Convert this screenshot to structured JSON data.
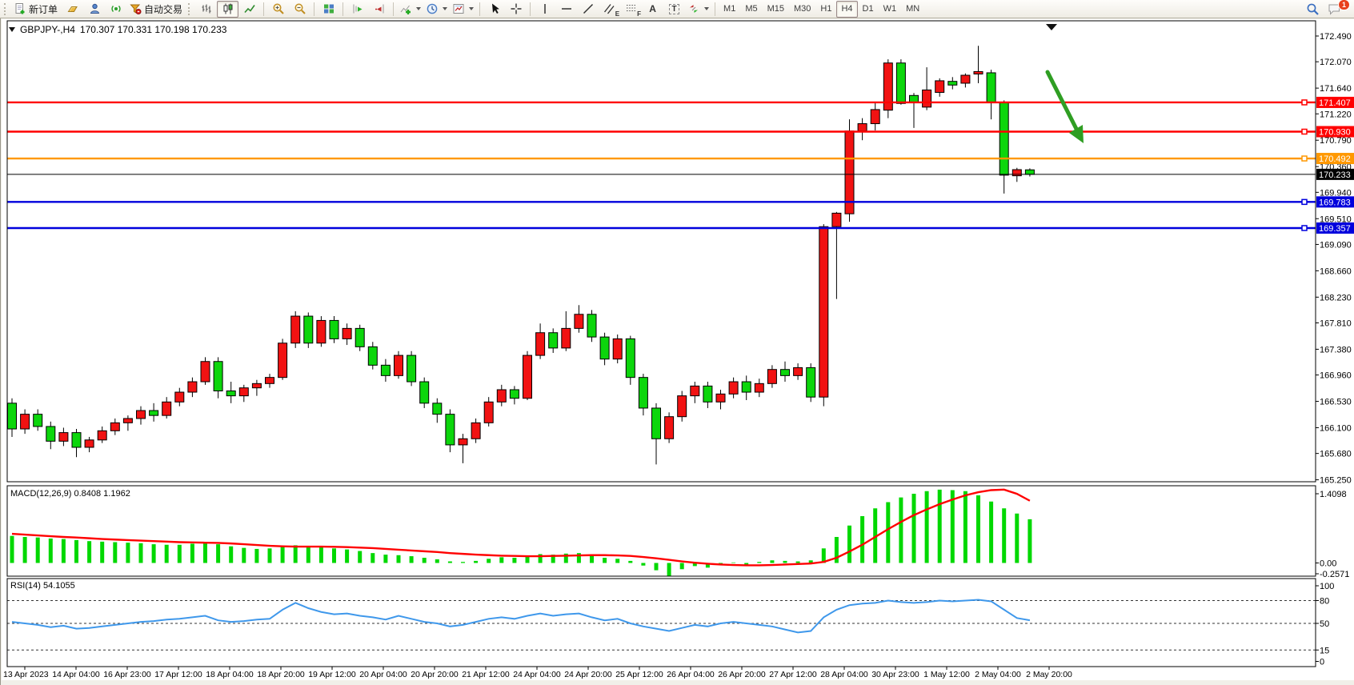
{
  "toolbar": {
    "new_order_label": "新订单",
    "autotrade_label": "自动交易",
    "glyph_a": "A",
    "glyph_t": "T",
    "glyph_e": "E",
    "glyph_f": "F",
    "timeframes": [
      "M1",
      "M5",
      "M15",
      "M30",
      "H1",
      "H4",
      "D1",
      "W1",
      "MN"
    ],
    "active_timeframe": "H4",
    "notification_count": "1"
  },
  "chart": {
    "title": {
      "symbol_period": "GBPJPY-,H4",
      "ohlc_text": "170.307 170.331 170.198 170.233"
    },
    "macd_label": "MACD(12,26,9) 0.8408 1.1962",
    "rsi_label": "RSI(14) 54.1055",
    "price_ticks": [
      "172.490",
      "172.070",
      "171.640",
      "171.220",
      "170.790",
      "170.360",
      "169.940",
      "169.510",
      "169.090",
      "168.660",
      "168.230",
      "167.810",
      "167.380",
      "166.960",
      "166.530",
      "166.100",
      "165.680",
      "165.250"
    ],
    "macd_ticks": [
      {
        "label": "1.4098",
        "value": 1.4098
      },
      {
        "label": "0.00",
        "value": 0
      },
      {
        "label": "-0.2571",
        "value": -0.2571
      }
    ],
    "rsi_ticks": [
      {
        "label": "100",
        "value": 100,
        "dashed": false
      },
      {
        "label": "80",
        "value": 80,
        "dashed": true
      },
      {
        "label": "50",
        "value": 50,
        "dashed": true
      },
      {
        "label": "15",
        "value": 15,
        "dashed": true
      },
      {
        "label": "0",
        "value": 0,
        "dashed": false
      }
    ],
    "hlines": [
      {
        "price": 171.407,
        "label": "171.407",
        "color": "#ff0000"
      },
      {
        "price": 170.93,
        "label": "170.930",
        "color": "#ff0000"
      },
      {
        "price": 170.492,
        "label": "170.492",
        "color": "#ff9800"
      },
      {
        "price": 169.783,
        "label": "169.783",
        "color": "#0000dd"
      },
      {
        "price": 169.357,
        "label": "169.357",
        "color": "#0000dd"
      }
    ],
    "current_price": {
      "value": 170.233,
      "label": "170.233"
    },
    "date_labels": [
      "13 Apr 2023",
      "14 Apr 04:00",
      "16 Apr 23:00",
      "17 Apr 12:00",
      "18 Apr 04:00",
      "18 Apr 20:00",
      "19 Apr 12:00",
      "20 Apr 04:00",
      "20 Apr 20:00",
      "21 Apr 12:00",
      "24 Apr 04:00",
      "24 Apr 20:00",
      "25 Apr 12:00",
      "26 Apr 04:00",
      "26 Apr 20:00",
      "27 Apr 12:00",
      "28 Apr 04:00",
      "30 Apr 23:00",
      "1 May 12:00",
      "2 May 04:00",
      "2 May 20:00"
    ]
  },
  "chart_data": {
    "type": "candlestick",
    "symbol": "GBPJPY",
    "timeframe": "H4",
    "ylim": [
      165.25,
      172.49
    ],
    "ohlc": [
      [
        166.5,
        166.58,
        165.95,
        166.08
      ],
      [
        166.08,
        166.4,
        166.0,
        166.32
      ],
      [
        166.32,
        166.4,
        166.05,
        166.12
      ],
      [
        166.12,
        166.2,
        165.75,
        165.88
      ],
      [
        165.88,
        166.1,
        165.8,
        166.02
      ],
      [
        166.02,
        166.08,
        165.62,
        165.78
      ],
      [
        165.78,
        165.95,
        165.7,
        165.9
      ],
      [
        165.9,
        166.12,
        165.85,
        166.05
      ],
      [
        166.05,
        166.25,
        165.98,
        166.18
      ],
      [
        166.18,
        166.3,
        166.05,
        166.25
      ],
      [
        166.25,
        166.45,
        166.15,
        166.38
      ],
      [
        166.38,
        166.5,
        166.2,
        166.3
      ],
      [
        166.3,
        166.6,
        166.25,
        166.52
      ],
      [
        166.52,
        166.75,
        166.45,
        166.68
      ],
      [
        166.68,
        166.92,
        166.6,
        166.85
      ],
      [
        166.85,
        167.25,
        166.8,
        167.18
      ],
      [
        167.18,
        167.25,
        166.58,
        166.7
      ],
      [
        166.7,
        166.85,
        166.5,
        166.62
      ],
      [
        166.62,
        166.8,
        166.52,
        166.75
      ],
      [
        166.75,
        166.88,
        166.62,
        166.82
      ],
      [
        166.82,
        166.98,
        166.75,
        166.92
      ],
      [
        166.92,
        167.55,
        166.88,
        167.48
      ],
      [
        167.48,
        168.0,
        167.4,
        167.92
      ],
      [
        167.92,
        167.98,
        167.4,
        167.48
      ],
      [
        167.48,
        167.92,
        167.42,
        167.85
      ],
      [
        167.85,
        167.92,
        167.48,
        167.55
      ],
      [
        167.55,
        167.8,
        167.45,
        167.72
      ],
      [
        167.72,
        167.78,
        167.35,
        167.42
      ],
      [
        167.42,
        167.5,
        167.05,
        167.12
      ],
      [
        167.12,
        167.22,
        166.85,
        166.95
      ],
      [
        166.95,
        167.35,
        166.9,
        167.28
      ],
      [
        167.28,
        167.35,
        166.78,
        166.85
      ],
      [
        166.85,
        166.92,
        166.42,
        166.5
      ],
      [
        166.5,
        166.58,
        166.18,
        166.32
      ],
      [
        166.32,
        166.4,
        165.7,
        165.82
      ],
      [
        165.82,
        166.0,
        165.52,
        165.92
      ],
      [
        165.92,
        166.25,
        165.85,
        166.18
      ],
      [
        166.18,
        166.6,
        166.12,
        166.52
      ],
      [
        166.52,
        166.8,
        166.45,
        166.72
      ],
      [
        166.72,
        166.78,
        166.48,
        166.58
      ],
      [
        166.58,
        167.35,
        166.55,
        167.28
      ],
      [
        167.28,
        167.8,
        167.22,
        167.65
      ],
      [
        167.65,
        167.72,
        167.32,
        167.4
      ],
      [
        167.4,
        168.0,
        167.35,
        167.72
      ],
      [
        167.72,
        168.1,
        167.65,
        167.95
      ],
      [
        167.95,
        168.02,
        167.5,
        167.58
      ],
      [
        167.58,
        167.65,
        167.12,
        167.22
      ],
      [
        167.22,
        167.62,
        167.15,
        167.55
      ],
      [
        167.55,
        167.6,
        166.8,
        166.92
      ],
      [
        166.92,
        166.98,
        166.3,
        166.42
      ],
      [
        166.42,
        166.5,
        165.5,
        165.92
      ],
      [
        165.92,
        166.35,
        165.85,
        166.28
      ],
      [
        166.28,
        166.7,
        166.2,
        166.62
      ],
      [
        166.62,
        166.85,
        166.5,
        166.78
      ],
      [
        166.78,
        166.85,
        166.42,
        166.52
      ],
      [
        166.52,
        166.72,
        166.4,
        166.65
      ],
      [
        166.65,
        166.92,
        166.58,
        166.85
      ],
      [
        166.85,
        166.95,
        166.55,
        166.68
      ],
      [
        166.68,
        166.9,
        166.6,
        166.82
      ],
      [
        166.82,
        167.12,
        166.75,
        167.05
      ],
      [
        167.05,
        167.18,
        166.85,
        166.95
      ],
      [
        166.95,
        167.15,
        166.88,
        167.08
      ],
      [
        167.08,
        167.15,
        166.52,
        166.6
      ],
      [
        166.6,
        169.42,
        166.45,
        169.38
      ],
      [
        169.38,
        169.62,
        168.2,
        169.6
      ],
      [
        169.59,
        171.13,
        169.46,
        170.94
      ],
      [
        170.94,
        171.15,
        170.79,
        171.06
      ],
      [
        171.06,
        171.4,
        170.95,
        171.29
      ],
      [
        171.28,
        172.11,
        171.15,
        172.05
      ],
      [
        172.05,
        172.11,
        171.37,
        171.39
      ],
      [
        171.52,
        171.56,
        170.99,
        171.4
      ],
      [
        171.33,
        171.98,
        171.28,
        171.61
      ],
      [
        171.57,
        171.8,
        171.5,
        171.76
      ],
      [
        171.75,
        171.82,
        171.62,
        171.69
      ],
      [
        171.72,
        171.88,
        171.65,
        171.85
      ],
      [
        171.87,
        172.33,
        171.72,
        171.91
      ],
      [
        171.89,
        171.94,
        171.13,
        171.41
      ],
      [
        171.41,
        171.44,
        169.92,
        170.22
      ],
      [
        170.21,
        170.34,
        170.11,
        170.31
      ],
      [
        170.307,
        170.331,
        170.198,
        170.233
      ]
    ],
    "macd": {
      "params": "12,26,9",
      "current_main": 0.8408,
      "current_signal": 1.1962,
      "scale_max": 1.4098,
      "scale_min": -0.2571,
      "histogram": [
        0.52,
        0.5,
        0.49,
        0.47,
        0.46,
        0.44,
        0.42,
        0.41,
        0.4,
        0.39,
        0.38,
        0.36,
        0.35,
        0.35,
        0.37,
        0.39,
        0.36,
        0.32,
        0.29,
        0.27,
        0.28,
        0.31,
        0.34,
        0.32,
        0.3,
        0.28,
        0.26,
        0.23,
        0.19,
        0.16,
        0.15,
        0.13,
        0.1,
        0.07,
        0.03,
        0.02,
        0.04,
        0.08,
        0.11,
        0.1,
        0.14,
        0.17,
        0.16,
        0.18,
        0.19,
        0.15,
        0.1,
        0.08,
        0.04,
        -0.05,
        -0.14,
        -0.2571,
        -0.12,
        -0.06,
        -0.09,
        -0.04,
        0.01,
        -0.03,
        0.02,
        0.05,
        0.04,
        0.03,
        0.05,
        0.28,
        0.5,
        0.72,
        0.9,
        1.05,
        1.17,
        1.26,
        1.33,
        1.38,
        1.4098,
        1.4,
        1.38,
        1.3,
        1.18,
        1.05,
        0.95,
        0.8408
      ],
      "signal": [
        0.56,
        0.545,
        0.53,
        0.515,
        0.5,
        0.49,
        0.475,
        0.46,
        0.45,
        0.44,
        0.43,
        0.42,
        0.41,
        0.4,
        0.395,
        0.39,
        0.385,
        0.375,
        0.36,
        0.345,
        0.33,
        0.32,
        0.315,
        0.315,
        0.315,
        0.31,
        0.305,
        0.295,
        0.285,
        0.27,
        0.255,
        0.24,
        0.225,
        0.21,
        0.19,
        0.175,
        0.16,
        0.15,
        0.14,
        0.135,
        0.13,
        0.13,
        0.135,
        0.14,
        0.145,
        0.15,
        0.15,
        0.145,
        0.135,
        0.115,
        0.09,
        0.06,
        0.03,
        0.005,
        -0.015,
        -0.03,
        -0.04,
        -0.045,
        -0.045,
        -0.04,
        -0.03,
        -0.02,
        -0.01,
        0.02,
        0.1,
        0.22,
        0.35,
        0.5,
        0.65,
        0.79,
        0.92,
        1.03,
        1.13,
        1.22,
        1.3,
        1.36,
        1.4,
        1.41,
        1.33,
        1.1962
      ]
    },
    "rsi": {
      "period": 14,
      "current": 54.1055,
      "levels": [
        80,
        50,
        15
      ],
      "values": [
        52,
        50,
        48,
        45,
        47,
        43,
        44,
        46,
        48,
        50,
        52,
        53,
        55,
        56,
        58,
        60,
        54,
        52,
        53,
        55,
        56,
        68,
        77,
        70,
        65,
        62,
        63,
        60,
        58,
        55,
        60,
        56,
        52,
        50,
        46,
        48,
        52,
        56,
        58,
        56,
        60,
        63,
        60,
        62,
        63,
        58,
        54,
        56,
        50,
        46,
        43,
        40,
        44,
        48,
        46,
        50,
        52,
        50,
        48,
        46,
        42,
        38,
        40,
        58,
        68,
        74,
        76,
        77,
        80,
        78,
        77,
        78,
        80,
        79,
        80,
        81,
        79,
        68,
        57,
        54.1055
      ]
    }
  },
  "colors": {
    "bull": "#f11212",
    "bear": "#0cd60c",
    "wick": "#000000",
    "macd_bar": "#00d800",
    "macd_signal": "#ff0000",
    "rsi_line": "#3f98eb",
    "current_price_line": "#000000",
    "arrow": "#2f9e23"
  }
}
